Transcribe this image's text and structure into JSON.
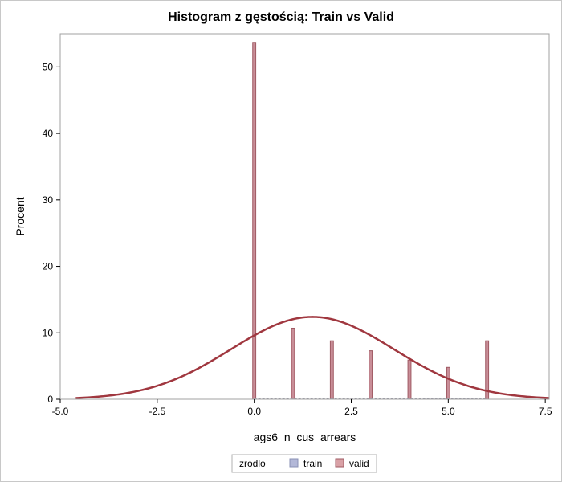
{
  "chart_data": {
    "type": "bar",
    "title": "Histogram z gęstością: Train vs Valid",
    "xlabel": "ags6_n_cus_arrears",
    "ylabel": "Procent",
    "xlim": [
      -5.0,
      7.6
    ],
    "ylim": [
      0,
      55
    ],
    "x_ticks": [
      "-5.0",
      "-2.5",
      "0.0",
      "2.5",
      "5.0",
      "7.5"
    ],
    "y_ticks": [
      "0",
      "10",
      "20",
      "30",
      "40",
      "50"
    ],
    "x_tick_values": [
      -5.0,
      -2.5,
      0.0,
      2.5,
      5.0,
      7.5
    ],
    "y_tick_values": [
      0,
      10,
      20,
      30,
      40,
      50
    ],
    "categories": [
      0,
      1,
      2,
      3,
      4,
      5,
      6
    ],
    "bar_width": 0.08,
    "series": [
      {
        "name": "train",
        "values": [
          53.7,
          10.7,
          8.8,
          7.3,
          5.9,
          4.8,
          8.8
        ],
        "fill": "#b3b8d8",
        "stroke": "#8a90b5"
      },
      {
        "name": "valid",
        "values": [
          53.7,
          10.7,
          8.8,
          7.3,
          5.9,
          4.8,
          8.8
        ],
        "fill": "#d9a1a6",
        "stroke": "#9f5a63"
      }
    ],
    "overlap_color": "#c98e98",
    "density": {
      "mean": 1.5,
      "sd": 2.1,
      "scale": 12.4,
      "x_range": [
        -4.6,
        7.6
      ],
      "color": "#a0373f"
    },
    "legend": {
      "title": "zrodlo",
      "position": "bottom-center",
      "items": [
        "train",
        "valid"
      ]
    },
    "grid": false
  }
}
